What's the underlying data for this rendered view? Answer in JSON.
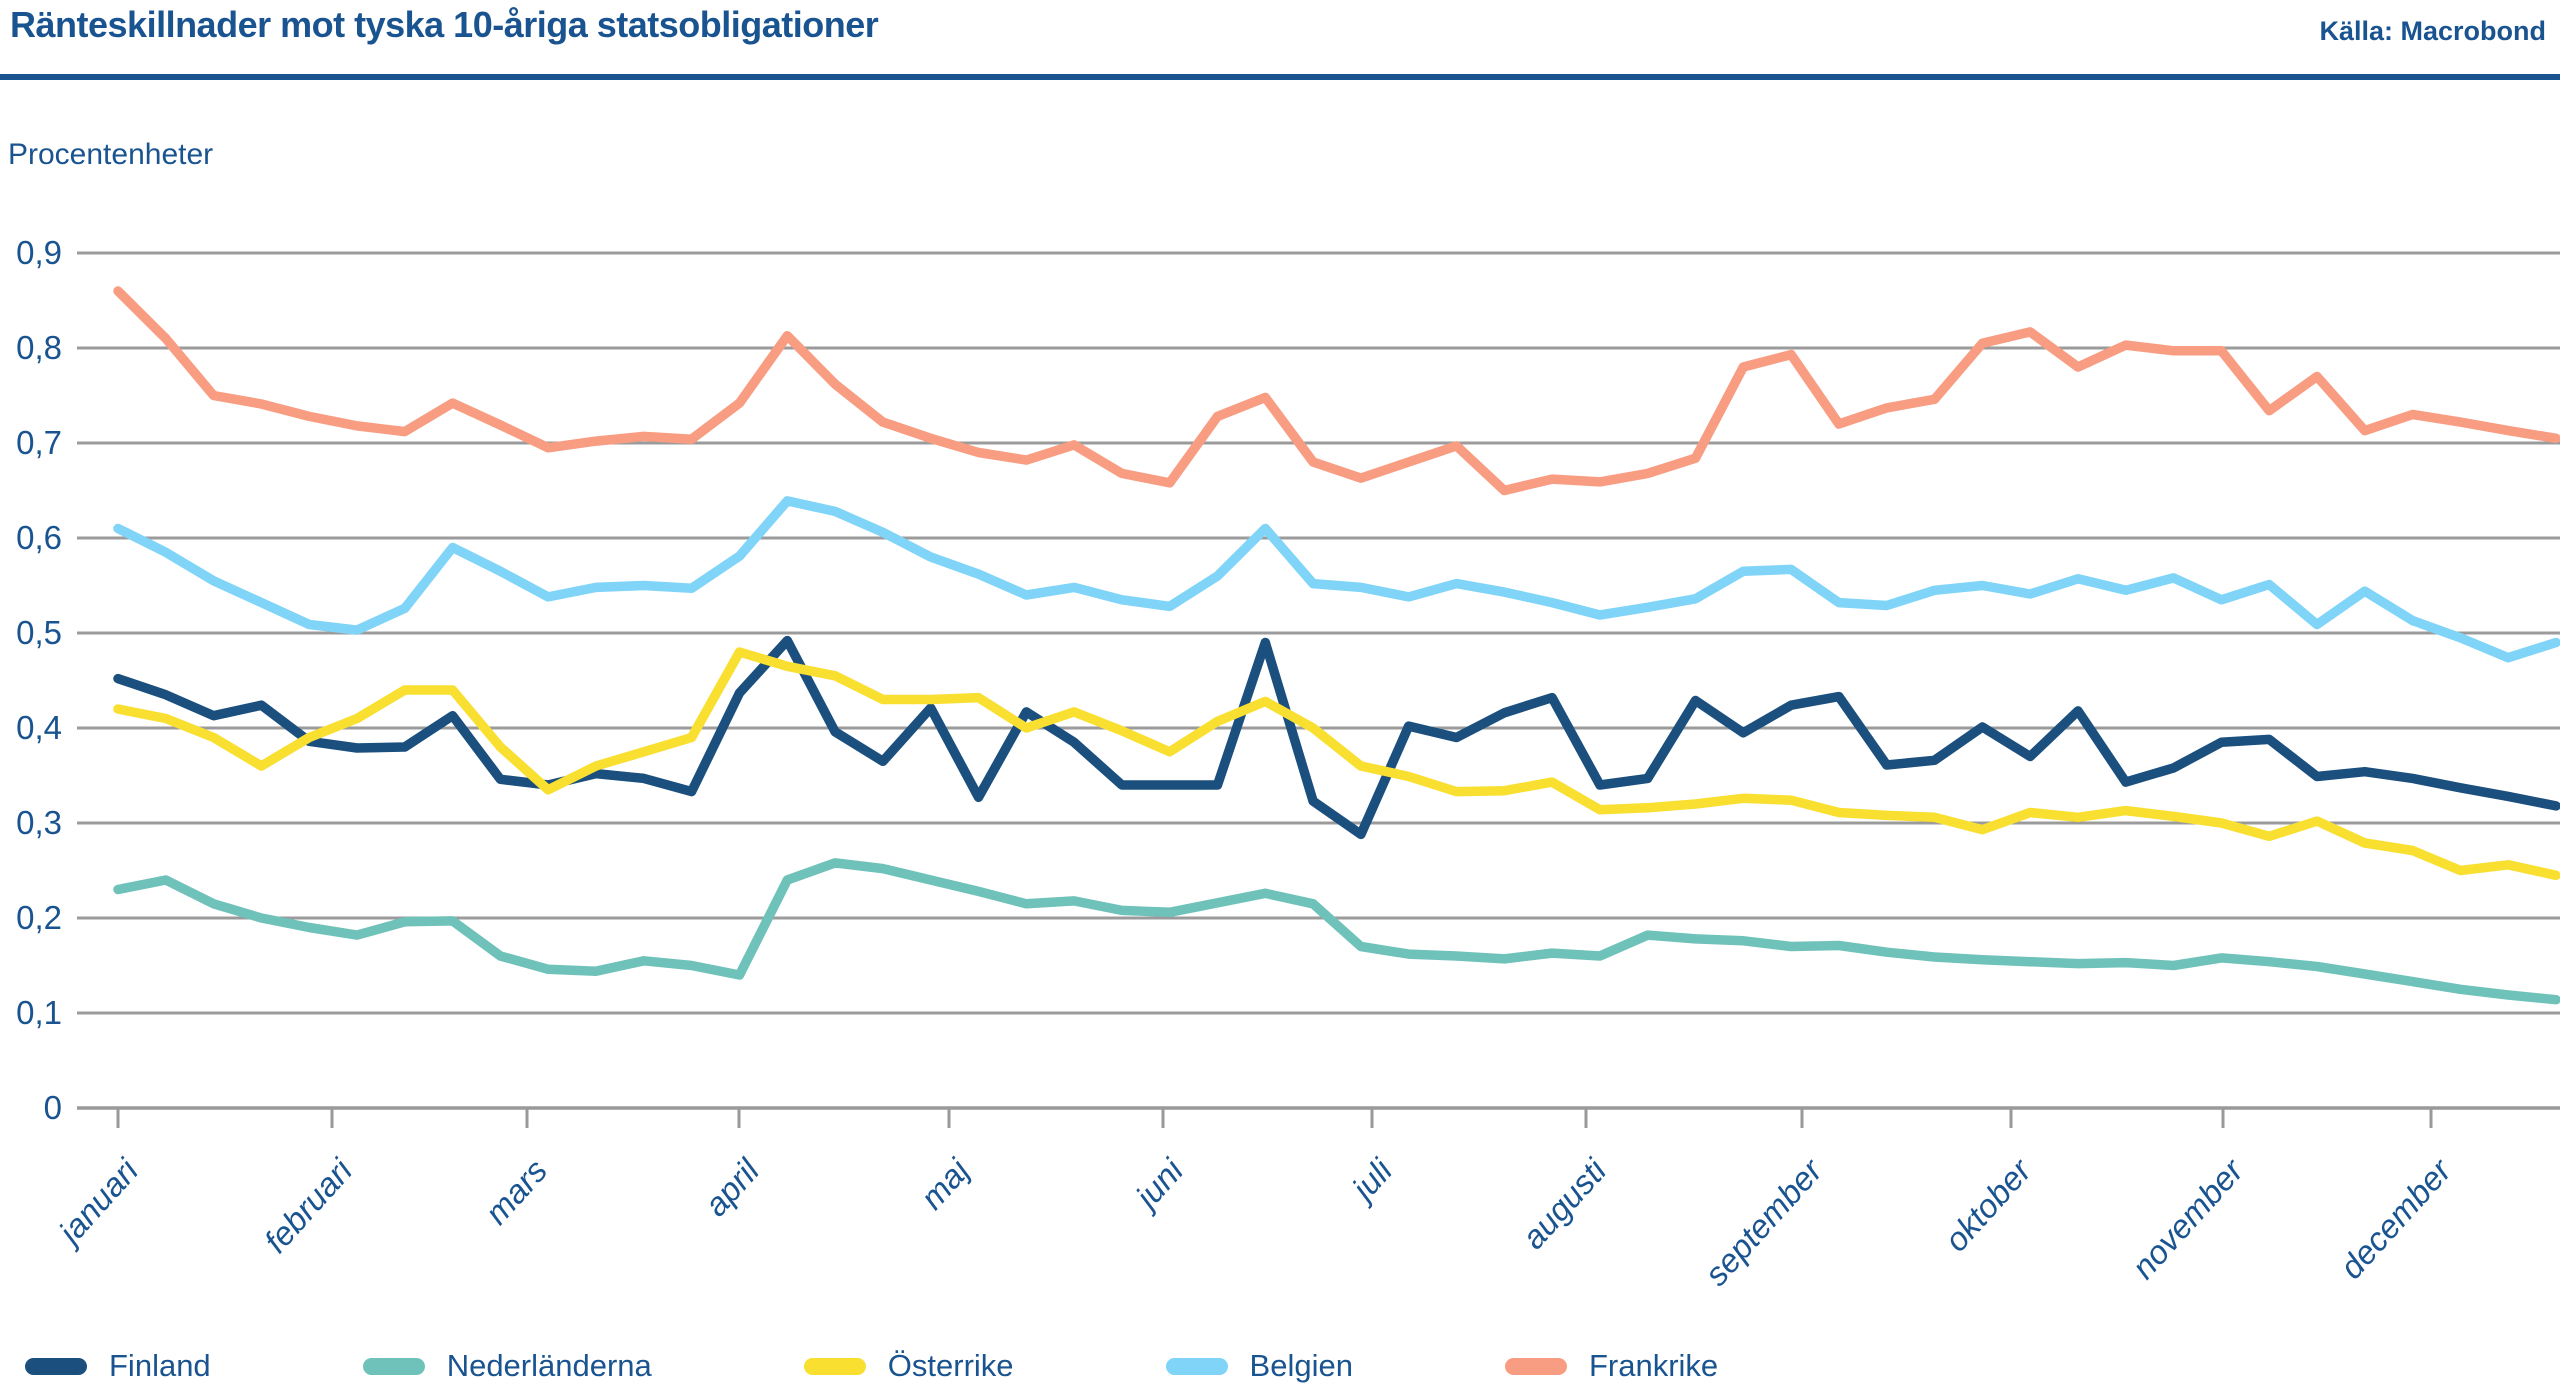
{
  "header": {
    "title": "Ränteskillnader mot tyska 10-åriga statsobligationer",
    "source": "Källa: Macrobond"
  },
  "y_axis": {
    "unit_label": "Procentenheter",
    "tick_labels": [
      "0",
      "0,1",
      "0,2",
      "0,3",
      "0,4",
      "0,5",
      "0,6",
      "0,7",
      "0,8",
      "0,9"
    ],
    "tick_values": [
      0,
      0.1,
      0.2,
      0.3,
      0.4,
      0.5,
      0.6,
      0.7,
      0.8,
      0.9
    ]
  },
  "x_axis": {
    "months": [
      "januari",
      "februari",
      "mars",
      "april",
      "maj",
      "juni",
      "juli",
      "augusti",
      "september",
      "oktober",
      "november",
      "december"
    ]
  },
  "colors": {
    "text_blue": "#1A5490",
    "gridline": "#9B9B9B",
    "axis": "#999999"
  },
  "chart_data": {
    "type": "line",
    "title": "Ränteskillnader mot tyska 10-åriga statsobligationer",
    "ylabel": "Procentenheter",
    "ylim": [
      0,
      0.9
    ],
    "grid": "horizontal",
    "legend_position": "bottom",
    "x_type": "time-weekly",
    "categories": [
      "januari",
      "februari",
      "mars",
      "april",
      "maj",
      "juni",
      "juli",
      "augusti",
      "september",
      "oktober",
      "november",
      "december"
    ],
    "points_per_series": 52,
    "series": [
      {
        "name": "Finland",
        "color": "#1B4F7E",
        "values": [
          0.452,
          0.435,
          0.413,
          0.424,
          0.386,
          0.379,
          0.38,
          0.413,
          0.346,
          0.34,
          0.352,
          0.347,
          0.333,
          0.437,
          0.492,
          0.396,
          0.365,
          0.421,
          0.327,
          0.417,
          0.385,
          0.34,
          0.34,
          0.34,
          0.49,
          0.323,
          0.288,
          0.402,
          0.39,
          0.416,
          0.432,
          0.34,
          0.347,
          0.429,
          0.395,
          0.424,
          0.433,
          0.361,
          0.366,
          0.401,
          0.37,
          0.418,
          0.343,
          0.358,
          0.385,
          0.388,
          0.349,
          0.354,
          0.347,
          0.337,
          0.328,
          0.318
        ]
      },
      {
        "name": "Nederländerna",
        "color": "#6FC2B9",
        "values": [
          0.23,
          0.24,
          0.215,
          0.2,
          0.19,
          0.182,
          0.196,
          0.197,
          0.16,
          0.146,
          0.144,
          0.155,
          0.15,
          0.14,
          0.24,
          0.258,
          0.252,
          0.24,
          0.228,
          0.215,
          0.218,
          0.208,
          0.206,
          0.216,
          0.226,
          0.215,
          0.17,
          0.162,
          0.16,
          0.157,
          0.163,
          0.16,
          0.182,
          0.178,
          0.176,
          0.17,
          0.171,
          0.164,
          0.159,
          0.156,
          0.154,
          0.152,
          0.153,
          0.15,
          0.158,
          0.154,
          0.149,
          0.141,
          0.133,
          0.125,
          0.119,
          0.114
        ]
      },
      {
        "name": "Österrike",
        "color": "#F8DF30",
        "values": [
          0.42,
          0.41,
          0.39,
          0.36,
          0.39,
          0.41,
          0.44,
          0.44,
          0.38,
          0.335,
          0.36,
          0.375,
          0.39,
          0.48,
          0.465,
          0.455,
          0.43,
          0.43,
          0.432,
          0.4,
          0.417,
          0.397,
          0.375,
          0.407,
          0.428,
          0.4,
          0.36,
          0.349,
          0.333,
          0.334,
          0.343,
          0.314,
          0.316,
          0.32,
          0.326,
          0.324,
          0.311,
          0.308,
          0.306,
          0.293,
          0.311,
          0.306,
          0.313,
          0.307,
          0.3,
          0.286,
          0.302,
          0.279,
          0.271,
          0.25,
          0.256,
          0.245
        ]
      },
      {
        "name": "Belgien",
        "color": "#7FD4F8",
        "values": [
          0.61,
          0.585,
          0.555,
          0.532,
          0.509,
          0.503,
          0.526,
          0.59,
          0.565,
          0.538,
          0.548,
          0.55,
          0.547,
          0.581,
          0.639,
          0.628,
          0.606,
          0.58,
          0.562,
          0.54,
          0.548,
          0.535,
          0.528,
          0.56,
          0.61,
          0.552,
          0.548,
          0.538,
          0.552,
          0.543,
          0.532,
          0.519,
          0.527,
          0.536,
          0.565,
          0.567,
          0.532,
          0.529,
          0.545,
          0.55,
          0.541,
          0.557,
          0.545,
          0.558,
          0.535,
          0.551,
          0.509,
          0.544,
          0.513,
          0.495,
          0.474,
          0.49
        ]
      },
      {
        "name": "Frankrike",
        "color": "#F89C82",
        "values": [
          0.86,
          0.81,
          0.75,
          0.741,
          0.728,
          0.718,
          0.712,
          0.742,
          0.719,
          0.695,
          0.702,
          0.707,
          0.704,
          0.742,
          0.813,
          0.762,
          0.722,
          0.705,
          0.69,
          0.682,
          0.698,
          0.668,
          0.658,
          0.728,
          0.748,
          0.68,
          0.663,
          0.68,
          0.697,
          0.65,
          0.662,
          0.659,
          0.668,
          0.684,
          0.78,
          0.793,
          0.72,
          0.737,
          0.746,
          0.805,
          0.817,
          0.78,
          0.803,
          0.797,
          0.797,
          0.734,
          0.77,
          0.713,
          0.73,
          0.722,
          0.713,
          0.705
        ]
      }
    ]
  }
}
